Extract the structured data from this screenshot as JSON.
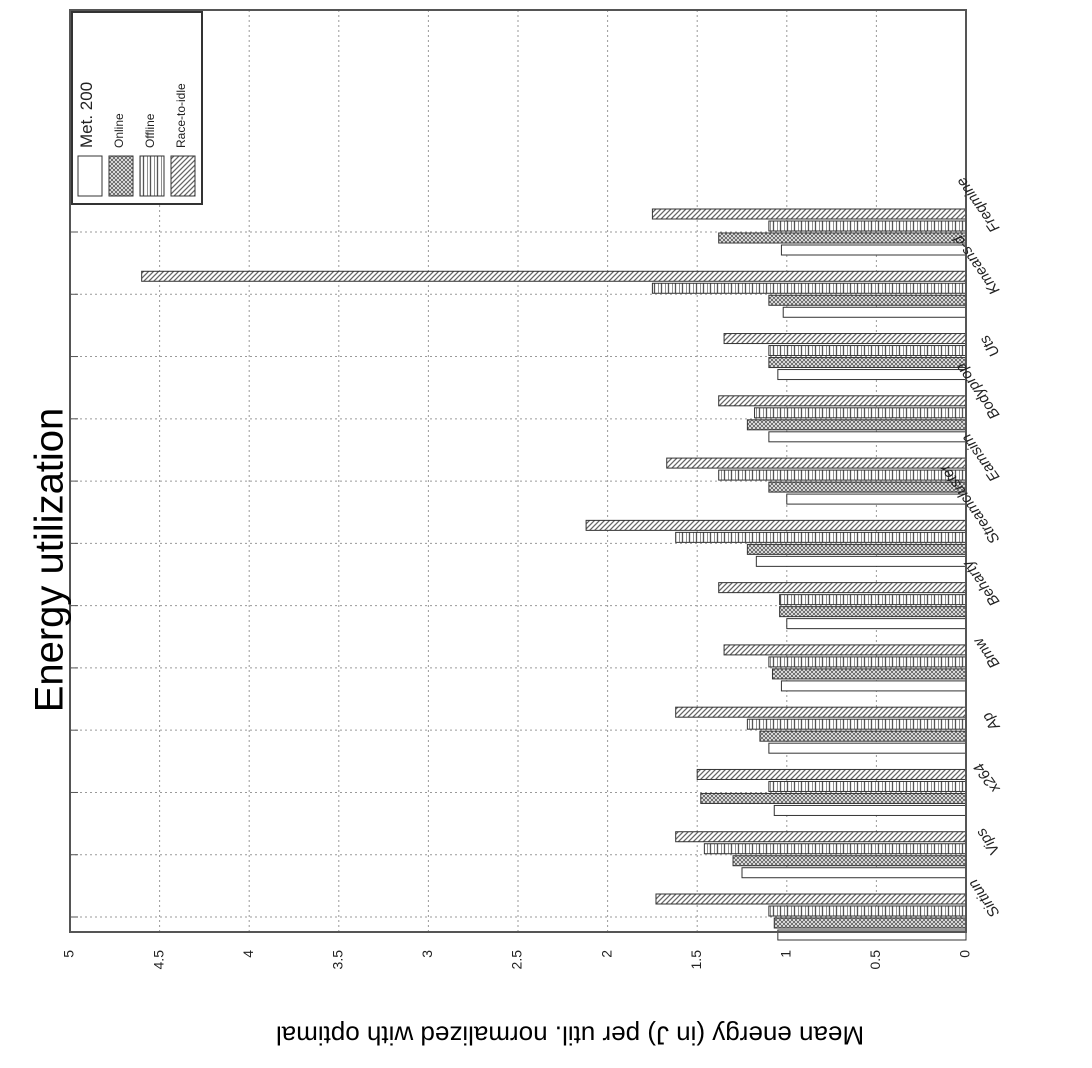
{
  "chart_data": {
    "type": "bar",
    "orientation": "horizontal-bars, figure rotated",
    "title": "Energy utilization",
    "ylabel": "Mean energy (in J) per util. normalized with optimal",
    "xlabel": "",
    "ylim": [
      0,
      5
    ],
    "y_ticks": [
      "0",
      "0.5",
      "1",
      "1.5",
      "2",
      "2.5",
      "3",
      "3.5",
      "4",
      "4.5",
      "5"
    ],
    "grid": true,
    "legend_position": "top-left (rotated)",
    "categories": [
      "Sirtiun",
      "Vips",
      "x264",
      "Ap",
      "Bmw",
      "Beharty",
      "Streamcluster",
      "Eamsim",
      "Bodyprop",
      "Uts",
      "Kmeans-d",
      "Freqmine"
    ],
    "series": [
      {
        "name": "Met. 200",
        "pattern": "plain",
        "values": [
          1.05,
          1.25,
          1.07,
          1.1,
          1.03,
          1.0,
          1.17,
          1.0,
          1.1,
          1.05,
          1.02,
          1.03
        ]
      },
      {
        "name": "Online",
        "pattern": "crosshatch",
        "values": [
          1.07,
          1.3,
          1.48,
          1.15,
          1.08,
          1.04,
          1.22,
          1.1,
          1.22,
          1.1,
          1.1,
          1.38
        ]
      },
      {
        "name": "Offline",
        "pattern": "vertical",
        "values": [
          1.1,
          1.46,
          1.1,
          1.22,
          1.1,
          1.04,
          1.62,
          1.38,
          1.18,
          1.1,
          1.75,
          1.1
        ]
      },
      {
        "name": "Race-to-idle",
        "pattern": "diagonal",
        "values": [
          1.73,
          1.62,
          1.5,
          1.62,
          1.35,
          1.38,
          2.12,
          1.67,
          1.38,
          1.35,
          4.6,
          1.75
        ]
      }
    ],
    "colors": {
      "frame": "#555555",
      "grid": "#999999",
      "bar_stroke": "#333333",
      "pattern": "#777777"
    }
  }
}
